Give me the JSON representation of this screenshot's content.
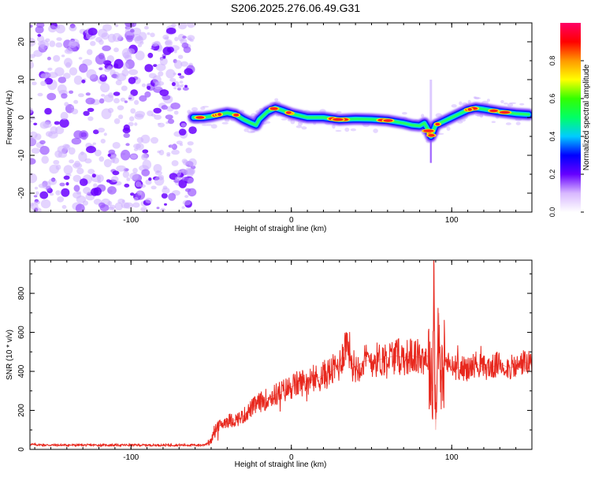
{
  "title": "S206.2025.276.06.49.G31",
  "colors": {
    "snr_line": "#e8281e",
    "axis": "#000000",
    "colorbar_stops": [
      "#ffffff",
      "#d8b8ff",
      "#6600ff",
      "#0000ff",
      "#00ccff",
      "#00ff66",
      "#33ff00",
      "#ffff00",
      "#ff9900",
      "#ff0000",
      "#ff0066"
    ]
  },
  "chart_data": [
    {
      "type": "heatmap",
      "name": "spectrogram",
      "xlabel": "Height of straight line (km)",
      "ylabel": "Frequency (Hz)",
      "xlim": [
        -163,
        150
      ],
      "ylim": [
        -25,
        25
      ],
      "x_ticks": [
        -100,
        0,
        100
      ],
      "y_ticks": [
        -20,
        -10,
        0,
        10,
        20
      ],
      "noise_region_x": [
        -163,
        -61
      ],
      "signal_start_x": -61,
      "ridge": {
        "x": [
          -61,
          -55,
          -50,
          -45,
          -40,
          -35,
          -30,
          -25,
          -22,
          -20,
          -15,
          -10,
          -5,
          0,
          5,
          10,
          20,
          30,
          40,
          50,
          60,
          70,
          75,
          80,
          83,
          85,
          87,
          90,
          95,
          100,
          105,
          110,
          115,
          120,
          130,
          140,
          148
        ],
        "freq": [
          0,
          0,
          0.3,
          0.8,
          1.2,
          0.8,
          -0.5,
          -1.5,
          -2.0,
          -0.5,
          1.5,
          2.5,
          1.8,
          1.0,
          0.5,
          0.0,
          0.0,
          -0.6,
          -0.4,
          -0.5,
          -0.8,
          -1.5,
          -2.0,
          -2.2,
          -1.5,
          -3.0,
          -5.0,
          -2.0,
          -1.0,
          0.0,
          1.0,
          2.0,
          2.5,
          2.2,
          1.5,
          1.0,
          0.8
        ]
      },
      "colorbar": {
        "label": "Normalized spectral amplitude",
        "range": [
          0.0,
          1.0
        ],
        "ticks": [
          0.0,
          0.2,
          0.4,
          0.6,
          0.8
        ],
        "tick_labels": [
          "0.0",
          "0.2",
          "0.4",
          "0.6",
          "0.8"
        ]
      }
    },
    {
      "type": "line",
      "name": "snr",
      "xlabel": "Height of straight line (km)",
      "ylabel": "SNR (10 * v/v)",
      "xlim": [
        -163,
        150
      ],
      "ylim": [
        0,
        970
      ],
      "x_ticks": [
        -100,
        0,
        100
      ],
      "y_ticks": [
        0,
        200,
        400,
        600,
        800
      ],
      "series": [
        {
          "name": "SNR",
          "x": [
            -163,
            -150,
            -130,
            -110,
            -90,
            -70,
            -55,
            -50,
            -48,
            -45,
            -40,
            -35,
            -30,
            -25,
            -20,
            -15,
            -10,
            -5,
            0,
            5,
            10,
            15,
            20,
            25,
            30,
            33,
            35,
            38,
            40,
            45,
            50,
            55,
            60,
            65,
            70,
            75,
            80,
            85,
            88,
            89,
            90,
            91,
            92,
            93,
            95,
            100,
            105,
            110,
            115,
            120,
            125,
            130,
            135,
            140,
            145,
            150
          ],
          "values": [
            25,
            22,
            22,
            22,
            22,
            22,
            22,
            40,
            100,
            120,
            150,
            150,
            170,
            210,
            240,
            260,
            280,
            300,
            320,
            340,
            350,
            360,
            380,
            400,
            430,
            520,
            560,
            440,
            420,
            450,
            460,
            460,
            470,
            480,
            470,
            480,
            470,
            480,
            300,
            950,
            100,
            450,
            700,
            300,
            460,
            420,
            420,
            410,
            440,
            420,
            420,
            440,
            420,
            420,
            450,
            430
          ]
        }
      ]
    }
  ]
}
